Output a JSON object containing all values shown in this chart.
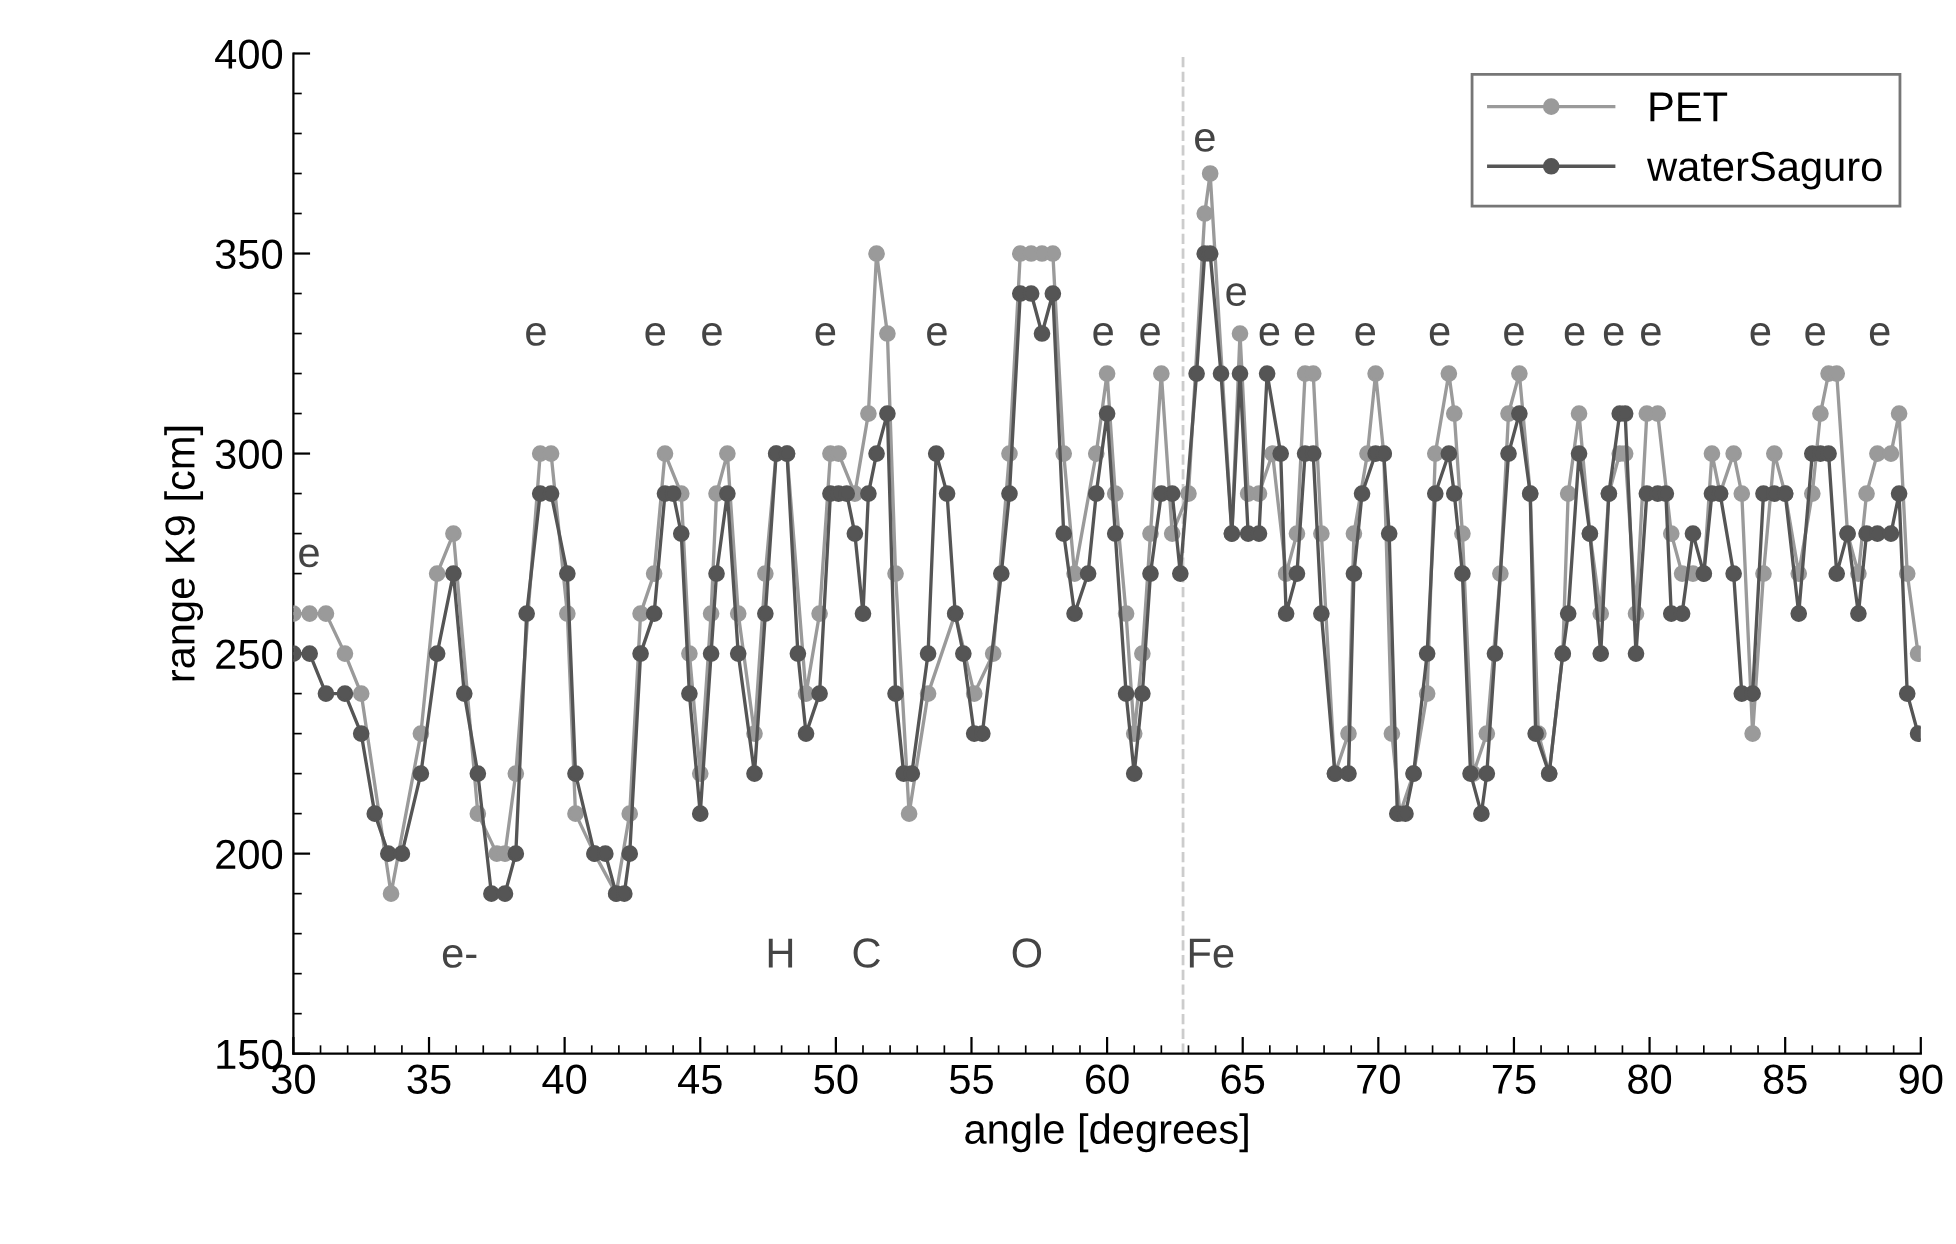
{
  "chart_data": {
    "type": "line",
    "xlabel": "angle [degrees]",
    "ylabel": "range K9 [cm]",
    "xlim": [
      30,
      90
    ],
    "xticks": [
      30,
      35,
      40,
      45,
      50,
      55,
      60,
      65,
      70,
      75,
      80,
      85,
      90
    ],
    "ylim": [
      150,
      400
    ],
    "yticks": [
      150,
      200,
      250,
      300,
      350,
      400
    ],
    "grid": false,
    "legend": "top right",
    "marker": "circle",
    "line_style": "solid",
    "ref_lines": [
      {
        "axis": "x",
        "value": 62.8,
        "label": null,
        "color": "#cccccc",
        "line_style": "dashed"
      }
    ],
    "series": [
      {
        "name": "PET",
        "color": "#9a9a9a",
        "x": [
          30.0,
          30.6,
          31.2,
          31.9,
          32.5,
          33.6,
          34.7,
          35.3,
          35.9,
          36.8,
          37.5,
          37.8,
          38.2,
          39.1,
          39.5,
          40.1,
          40.4,
          41.1,
          41.9,
          42.4,
          42.8,
          43.3,
          43.7,
          44.3,
          44.6,
          45.0,
          45.4,
          45.6,
          46.0,
          46.4,
          47.0,
          47.4,
          47.8,
          48.2,
          48.9,
          49.4,
          49.8,
          50.1,
          50.7,
          51.2,
          51.5,
          51.9,
          52.2,
          52.7,
          53.4,
          54.4,
          55.1,
          55.8,
          56.4,
          56.8,
          57.2,
          57.6,
          58.0,
          58.4,
          58.8,
          59.6,
          60.0,
          60.3,
          60.7,
          61.0,
          61.3,
          61.6,
          62.0,
          62.4,
          63.0,
          63.6,
          63.8,
          64.6,
          64.9,
          65.2,
          65.6,
          66.1,
          66.6,
          67.0,
          67.3,
          67.6,
          67.9,
          68.4,
          68.9,
          69.1,
          69.6,
          69.9,
          70.2,
          70.5,
          70.8,
          71.3,
          71.8,
          72.1,
          72.6,
          72.8,
          73.1,
          73.5,
          74.0,
          74.5,
          74.8,
          75.2,
          75.6,
          75.9,
          76.3,
          76.8,
          77.0,
          77.4,
          77.8,
          78.2,
          78.5,
          78.9,
          79.1,
          79.5,
          79.9,
          80.3,
          80.8,
          81.2,
          81.6,
          82.0,
          82.3,
          82.6,
          83.1,
          83.4,
          83.8,
          84.2,
          84.6,
          85.0,
          85.5,
          86.0,
          86.3,
          86.6,
          86.9,
          87.3,
          87.7,
          88.0,
          88.4,
          88.9,
          89.2,
          89.5,
          89.9
        ],
        "values": [
          260,
          260,
          260,
          250,
          240,
          190,
          230,
          270,
          280,
          210,
          200,
          200,
          220,
          300,
          300,
          260,
          210,
          200,
          190,
          210,
          260,
          270,
          300,
          290,
          250,
          220,
          260,
          290,
          300,
          260,
          230,
          270,
          300,
          300,
          240,
          260,
          300,
          300,
          290,
          310,
          350,
          330,
          270,
          210,
          240,
          260,
          240,
          250,
          300,
          350,
          350,
          350,
          350,
          300,
          270,
          300,
          320,
          290,
          260,
          230,
          250,
          280,
          320,
          280,
          290,
          360,
          370,
          280,
          330,
          290,
          290,
          300,
          270,
          280,
          320,
          320,
          280,
          220,
          230,
          280,
          300,
          320,
          300,
          230,
          210,
          220,
          240,
          300,
          320,
          310,
          280,
          220,
          230,
          270,
          310,
          320,
          290,
          230,
          220,
          250,
          290,
          310,
          280,
          260,
          290,
          300,
          300,
          260,
          310,
          310,
          280,
          270,
          270,
          270,
          300,
          290,
          300,
          290,
          230,
          270,
          300,
          290,
          270,
          290,
          310,
          320,
          320,
          280,
          270,
          290,
          300,
          300,
          310,
          270,
          250
        ]
      },
      {
        "name": "waterSaguro",
        "color": "#555555",
        "x": [
          30.0,
          30.6,
          31.2,
          31.9,
          32.5,
          33.0,
          33.5,
          34.0,
          34.7,
          35.3,
          35.9,
          36.3,
          36.8,
          37.3,
          37.8,
          38.2,
          38.6,
          39.1,
          39.5,
          40.1,
          40.4,
          41.1,
          41.5,
          41.9,
          42.2,
          42.4,
          42.8,
          43.3,
          43.7,
          44.0,
          44.3,
          44.6,
          45.0,
          45.4,
          45.6,
          46.0,
          46.4,
          47.0,
          47.4,
          47.8,
          48.2,
          48.6,
          48.9,
          49.4,
          49.8,
          50.1,
          50.4,
          50.7,
          51.0,
          51.2,
          51.5,
          51.9,
          52.2,
          52.5,
          52.8,
          53.4,
          53.7,
          54.1,
          54.4,
          54.7,
          55.1,
          55.4,
          56.1,
          56.4,
          56.8,
          57.2,
          57.6,
          58.0,
          58.4,
          58.8,
          59.3,
          59.6,
          60.0,
          60.3,
          60.7,
          61.0,
          61.3,
          61.6,
          62.0,
          62.4,
          62.7,
          63.3,
          63.6,
          63.8,
          64.2,
          64.6,
          64.9,
          65.2,
          65.6,
          65.9,
          66.4,
          66.6,
          67.0,
          67.3,
          67.6,
          67.9,
          68.4,
          68.9,
          69.1,
          69.4,
          69.9,
          70.2,
          70.4,
          70.7,
          71.0,
          71.3,
          71.8,
          72.1,
          72.6,
          72.8,
          73.1,
          73.4,
          73.8,
          74.0,
          74.3,
          74.8,
          75.2,
          75.6,
          75.8,
          76.3,
          76.8,
          77.0,
          77.4,
          77.8,
          78.2,
          78.5,
          78.9,
          79.1,
          79.5,
          79.9,
          80.3,
          80.6,
          80.8,
          81.2,
          81.6,
          82.0,
          82.3,
          82.6,
          83.1,
          83.4,
          83.8,
          84.2,
          84.6,
          85.0,
          85.5,
          86.0,
          86.3,
          86.6,
          86.9,
          87.3,
          87.7,
          88.0,
          88.4,
          88.9,
          89.2,
          89.5,
          89.9
        ],
        "values": [
          250,
          250,
          240,
          240,
          230,
          210,
          200,
          200,
          220,
          250,
          270,
          240,
          220,
          190,
          190,
          200,
          260,
          290,
          290,
          270,
          220,
          200,
          200,
          190,
          190,
          200,
          250,
          260,
          290,
          290,
          280,
          240,
          210,
          250,
          270,
          290,
          250,
          220,
          260,
          300,
          300,
          250,
          230,
          240,
          290,
          290,
          290,
          280,
          260,
          290,
          300,
          310,
          240,
          220,
          220,
          250,
          300,
          290,
          260,
          250,
          230,
          230,
          270,
          290,
          340,
          340,
          330,
          340,
          280,
          260,
          270,
          290,
          310,
          280,
          240,
          220,
          240,
          270,
          290,
          290,
          270,
          320,
          350,
          350,
          320,
          280,
          320,
          280,
          280,
          320,
          300,
          260,
          270,
          300,
          300,
          260,
          220,
          220,
          270,
          290,
          300,
          300,
          280,
          210,
          210,
          220,
          250,
          290,
          300,
          290,
          270,
          220,
          210,
          220,
          250,
          300,
          310,
          290,
          230,
          220,
          250,
          260,
          300,
          280,
          250,
          290,
          310,
          310,
          250,
          290,
          290,
          290,
          260,
          260,
          280,
          270,
          290,
          290,
          270,
          240,
          240,
          290,
          290,
          290,
          260,
          300,
          300,
          300,
          270,
          280,
          260,
          280,
          280,
          280,
          290,
          240,
          230
        ]
      }
    ],
    "annotations": [
      "e",
      "e",
      "e",
      "e",
      "e",
      "e",
      "e",
      "e",
      "e",
      "e",
      "e",
      "e",
      "e",
      "e",
      "e",
      "e",
      "e",
      "e",
      "e",
      "e",
      "e",
      "e-",
      "H",
      "C",
      "O",
      "Fe"
    ]
  }
}
